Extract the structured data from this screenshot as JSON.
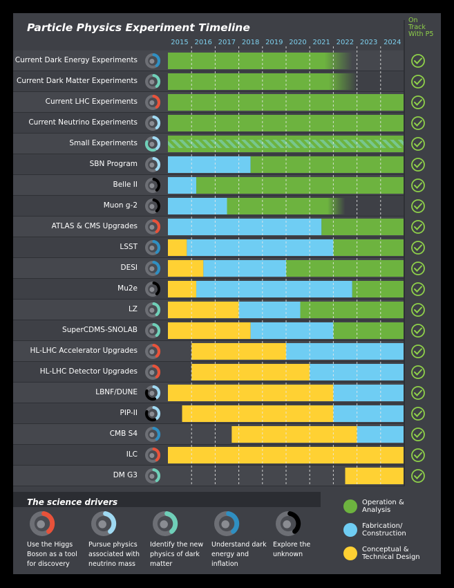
{
  "header": {
    "title": "Particle Physics Experiment Timeline",
    "on_track_label": "On Track With P5"
  },
  "colors": {
    "operation": "#6db33f",
    "fabrication": "#6fcdf3",
    "conceptual": "#ffd133",
    "check": "#8fd04a",
    "panel": "#3e4046",
    "row_alt": "#45474d"
  },
  "chart_data": {
    "type": "gantt",
    "title": "Particle Physics Experiment Timeline",
    "years": [
      "2015",
      "2016",
      "2017",
      "2018",
      "2019",
      "2020",
      "2021",
      "2022",
      "2023",
      "2024"
    ],
    "rows": [
      {
        "name": "Current Dark Energy Experiments",
        "driver": "dark-energy",
        "on_track": true,
        "phases": [
          {
            "phase": "operation",
            "start": 2015,
            "end": 2022.8,
            "fade_end": true
          }
        ]
      },
      {
        "name": "Current Dark Matter Experiments",
        "driver": "dark-matter",
        "on_track": true,
        "phases": [
          {
            "phase": "operation",
            "start": 2015,
            "end": 2023,
            "fade_end": true
          }
        ]
      },
      {
        "name": "Current LHC Experiments",
        "driver": "higgs",
        "on_track": true,
        "phases": [
          {
            "phase": "operation",
            "start": 2015,
            "end": 2025
          }
        ]
      },
      {
        "name": "Current Neutrino Experiments",
        "driver": "neutrino",
        "on_track": true,
        "phases": [
          {
            "phase": "operation",
            "start": 2015,
            "end": 2025
          }
        ]
      },
      {
        "name": "Small Experiments",
        "driver": "multi",
        "on_track": true,
        "phases": [
          {
            "phase": "operation",
            "start": 2015,
            "end": 2025,
            "hatched": true
          }
        ]
      },
      {
        "name": "SBN Program",
        "driver": "neutrino",
        "on_track": true,
        "phases": [
          {
            "phase": "fabrication",
            "start": 2015,
            "end": 2018.5
          },
          {
            "phase": "operation",
            "start": 2018.5,
            "end": 2025
          }
        ]
      },
      {
        "name": "Belle II",
        "driver": "unknown",
        "on_track": true,
        "phases": [
          {
            "phase": "fabrication",
            "start": 2015,
            "end": 2016.2
          },
          {
            "phase": "operation",
            "start": 2016.2,
            "end": 2025
          }
        ]
      },
      {
        "name": "Muon g-2",
        "driver": "unknown",
        "on_track": true,
        "phases": [
          {
            "phase": "fabrication",
            "start": 2015,
            "end": 2017.5
          },
          {
            "phase": "operation",
            "start": 2017.5,
            "end": 2022.5,
            "fade_end": true
          }
        ]
      },
      {
        "name": "ATLAS & CMS Upgrades",
        "driver": "higgs",
        "on_track": true,
        "phases": [
          {
            "phase": "fabrication",
            "start": 2015,
            "end": 2021.5
          },
          {
            "phase": "operation",
            "start": 2021.5,
            "end": 2025
          }
        ]
      },
      {
        "name": "LSST",
        "driver": "dark-energy",
        "on_track": true,
        "phases": [
          {
            "phase": "conceptual",
            "start": 2015,
            "end": 2015.8
          },
          {
            "phase": "fabrication",
            "start": 2015.8,
            "end": 2022
          },
          {
            "phase": "operation",
            "start": 2022,
            "end": 2025
          }
        ]
      },
      {
        "name": "DESI",
        "driver": "dark-energy",
        "on_track": true,
        "phases": [
          {
            "phase": "conceptual",
            "start": 2015,
            "end": 2016.5
          },
          {
            "phase": "fabrication",
            "start": 2016.5,
            "end": 2020
          },
          {
            "phase": "operation",
            "start": 2020,
            "end": 2025
          }
        ]
      },
      {
        "name": "Mu2e",
        "driver": "unknown",
        "on_track": true,
        "phases": [
          {
            "phase": "conceptual",
            "start": 2015,
            "end": 2016.2
          },
          {
            "phase": "fabrication",
            "start": 2016.2,
            "end": 2022.8
          },
          {
            "phase": "operation",
            "start": 2022.8,
            "end": 2025
          }
        ]
      },
      {
        "name": "LZ",
        "driver": "dark-matter",
        "on_track": true,
        "phases": [
          {
            "phase": "conceptual",
            "start": 2015,
            "end": 2018
          },
          {
            "phase": "fabrication",
            "start": 2018,
            "end": 2020.6
          },
          {
            "phase": "operation",
            "start": 2020.6,
            "end": 2025
          }
        ]
      },
      {
        "name": "SuperCDMS-SNOLAB",
        "driver": "dark-matter",
        "on_track": true,
        "phases": [
          {
            "phase": "conceptual",
            "start": 2015,
            "end": 2018.5
          },
          {
            "phase": "fabrication",
            "start": 2018.5,
            "end": 2022
          },
          {
            "phase": "operation",
            "start": 2022,
            "end": 2025
          }
        ]
      },
      {
        "name": "HL-LHC Accelerator Upgrades",
        "driver": "higgs",
        "on_track": true,
        "phases": [
          {
            "phase": "conceptual",
            "start": 2016,
            "end": 2020
          },
          {
            "phase": "fabrication",
            "start": 2020,
            "end": 2025
          }
        ]
      },
      {
        "name": "HL-LHC Detector Upgrades",
        "driver": "higgs",
        "on_track": true,
        "phases": [
          {
            "phase": "conceptual",
            "start": 2016,
            "end": 2021
          },
          {
            "phase": "fabrication",
            "start": 2021,
            "end": 2025
          }
        ]
      },
      {
        "name": "LBNF/DUNE",
        "driver": "neutrino-unknown",
        "on_track": true,
        "phases": [
          {
            "phase": "conceptual",
            "start": 2015,
            "end": 2022
          },
          {
            "phase": "fabrication",
            "start": 2022,
            "end": 2025
          }
        ]
      },
      {
        "name": "PIP-II",
        "driver": "neutrino-unknown",
        "on_track": true,
        "phases": [
          {
            "phase": "conceptual",
            "start": 2015.6,
            "end": 2022
          },
          {
            "phase": "fabrication",
            "start": 2022,
            "end": 2025
          }
        ]
      },
      {
        "name": "CMB S4",
        "driver": "dark-energy",
        "on_track": true,
        "phases": [
          {
            "phase": "conceptual",
            "start": 2017.7,
            "end": 2023
          },
          {
            "phase": "fabrication",
            "start": 2023,
            "end": 2025
          }
        ]
      },
      {
        "name": "ILC",
        "driver": "higgs",
        "on_track": true,
        "phases": [
          {
            "phase": "conceptual",
            "start": 2015,
            "end": 2025
          }
        ]
      },
      {
        "name": "DM G3",
        "driver": "dark-matter",
        "on_track": true,
        "phases": [
          {
            "phase": "conceptual",
            "start": 2022.5,
            "end": 2025
          }
        ]
      }
    ],
    "legend": [
      {
        "phase": "operation",
        "label": "Operation & Analysis"
      },
      {
        "phase": "fabrication",
        "label": "Fabrication/ Construction"
      },
      {
        "phase": "conceptual",
        "label": "Conceptual & Technical Design"
      }
    ]
  },
  "science_drivers": {
    "title": "The science drivers",
    "items": [
      {
        "id": "higgs",
        "label": "Use the Higgs Boson as a tool for discovery",
        "accent": "#e8523a"
      },
      {
        "id": "neutrino",
        "label": "Pursue physics associated with neutrino mass",
        "accent": "#9fd9f2"
      },
      {
        "id": "dark-matter",
        "label": "Identify the new physics of dark matter",
        "accent": "#6fcfb8"
      },
      {
        "id": "dark-energy",
        "label": "Understand dark energy and inflation",
        "accent": "#2f8fc2"
      },
      {
        "id": "unknown",
        "label": "Explore the unknown",
        "accent": "#000000"
      }
    ]
  }
}
